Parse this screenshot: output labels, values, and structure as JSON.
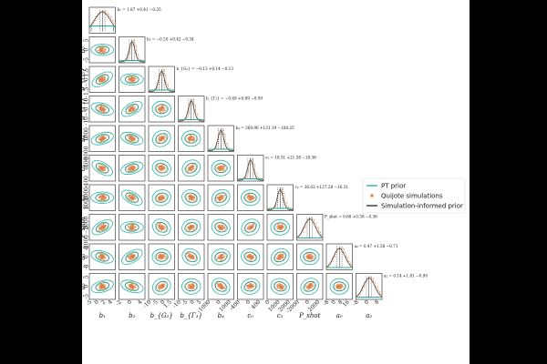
{
  "chart_data": {
    "type": "scatter",
    "subtype": "corner-plot",
    "parameters": [
      {
        "key": "b1",
        "label": "b₁",
        "ticks": [
          "-5",
          "0",
          "2",
          "4"
        ],
        "vticks": [
          "",
          "",
          ""
        ],
        "range": [
          0,
          5
        ],
        "title": "b₁ = 1.87 +0.41 −0.35"
      },
      {
        "key": "b2",
        "label": "b₂",
        "ticks": [
          "-2",
          "0",
          "4"
        ],
        "vticks": [
          "5",
          "0",
          "-5"
        ],
        "range": [
          -4,
          6
        ],
        "title": "b₂ = −0.20 +0.42 −0.34"
      },
      {
        "key": "bG2",
        "label": "b_{G₂}",
        "ticks": [
          "-10",
          "-5",
          "0",
          "1.5"
        ],
        "vticks": [
          "1.5",
          "0",
          "-1.5"
        ],
        "range": [
          -2,
          2
        ],
        "title": "b_{G₂} = −0.13 +0.14 −0.13"
      },
      {
        "key": "bG3",
        "label": "b_{Γ₃}",
        "ticks": [
          "-10",
          "-5",
          "0",
          "5"
        ],
        "vticks": [
          "10",
          "0",
          "-10"
        ],
        "range": [
          -12,
          12
        ],
        "title": "b_{Γ₃} = −0.49 +0.89 −0.59"
      },
      {
        "key": "b4",
        "label": "b₄",
        "ticks": [
          "-1000",
          "0",
          "1000"
        ],
        "vticks": [
          "1000",
          "0",
          "-1000"
        ],
        "range": [
          -1500,
          1500
        ],
        "title": "b₄ = 369.96 +131.19 −108.25"
      },
      {
        "key": "c0",
        "label": "c₀",
        "ticks": [
          "-400",
          "0",
          "400"
        ],
        "vticks": [
          "400",
          "0",
          "-400"
        ],
        "range": [
          -600,
          600
        ],
        "title": "c₀ = 18.51 +21.38 −18.36"
      },
      {
        "key": "c2",
        "label": "c₂",
        "ticks": [
          "0",
          "1000",
          "2000"
        ],
        "vticks": [
          "2000",
          "1000",
          "0"
        ],
        "range": [
          -500,
          2500
        ],
        "title": "c₂ = 36.03 +127.28 −16.31"
      },
      {
        "key": "Pshot",
        "label": "P_shot",
        "ticks": [
          "-2000",
          "0",
          "2000"
        ],
        "vticks": [
          "2000",
          "0",
          "-2000"
        ],
        "range": [
          -3000,
          3000
        ],
        "title": "P_shot = 0.68 +0.38 −0.36"
      },
      {
        "key": "a0",
        "label": "a₀",
        "ticks": [
          "-8",
          "0",
          "8",
          "16"
        ],
        "vticks": [
          "8",
          "0",
          "-8"
        ],
        "range": [
          -10,
          18
        ],
        "title": "a₀ = 0.47 +1.58 −0.71"
      },
      {
        "key": "a2",
        "label": "a₂",
        "ticks": [
          "-8",
          "0",
          "8"
        ],
        "vticks": [
          "5",
          "0",
          "-5"
        ],
        "range": [
          -10,
          10
        ],
        "title": "a₂ = 0.14 +1.81 −0.90"
      }
    ],
    "legend": {
      "placement": "right",
      "entries": [
        {
          "name": "PT prior",
          "marker": "line",
          "color": "#2ab5a0"
        },
        {
          "name": "Quijote simulations",
          "marker": "dot",
          "color": "#e07b39"
        },
        {
          "name": "Simulation-informed prior",
          "marker": "line",
          "color": "#333333"
        }
      ]
    },
    "grid": false,
    "colors": {
      "pt_prior": "#2ab5a0",
      "quijote": "#e07b39",
      "informed": "#333333"
    }
  }
}
